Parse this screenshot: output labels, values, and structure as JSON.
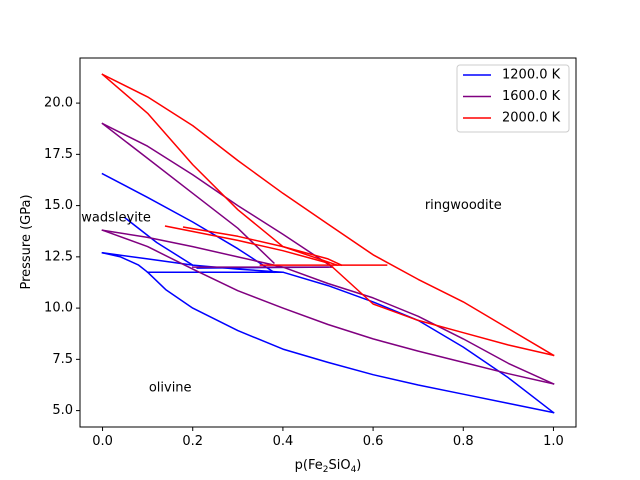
{
  "chart_data": {
    "type": "line",
    "xlabel": "p(Fe2SiO4)",
    "xlabel_parts": {
      "base": "p(Fe",
      "sub1": "2",
      "mid": "SiO",
      "sub2": "4",
      "end": ")"
    },
    "ylabel": "Pressure (GPa)",
    "xlim": [
      -0.05,
      1.05
    ],
    "ylim": [
      4.2,
      22.2
    ],
    "xticks": [
      0.0,
      0.2,
      0.4,
      0.6,
      0.8,
      1.0
    ],
    "xtick_labels": [
      "0.0",
      "0.2",
      "0.4",
      "0.6",
      "0.8",
      "1.0"
    ],
    "yticks": [
      5.0,
      7.5,
      10.0,
      12.5,
      15.0,
      17.5,
      20.0
    ],
    "ytick_labels": [
      "5.0",
      "7.5",
      "10.0",
      "12.5",
      "15.0",
      "17.5",
      "20.0"
    ],
    "grid": false,
    "legend_position": "top-right",
    "region_labels": [
      {
        "text": "olivine",
        "x": 0.15,
        "y": 6.1
      },
      {
        "text": "wadsleyite",
        "x": 0.03,
        "y": 14.4
      },
      {
        "text": "ringwoodite",
        "x": 0.8,
        "y": 15.0
      }
    ],
    "series": [
      {
        "name": "1200.0 K",
        "color": "#0000ff",
        "lines": [
          [
            [
              0.0,
              12.7
            ],
            [
              0.04,
              12.5
            ],
            [
              0.08,
              12.1
            ],
            [
              0.1,
              11.75
            ],
            [
              0.14,
              10.9
            ],
            [
              0.2,
              10.0
            ],
            [
              0.3,
              8.9
            ],
            [
              0.4,
              8.0
            ],
            [
              0.5,
              7.35
            ],
            [
              0.6,
              6.75
            ],
            [
              0.7,
              6.25
            ],
            [
              0.8,
              5.8
            ],
            [
              0.9,
              5.35
            ],
            [
              1.0,
              4.9
            ]
          ],
          [
            [
              0.0,
              12.7
            ],
            [
              0.1,
              12.4
            ],
            [
              0.2,
              12.1
            ],
            [
              0.3,
              11.9
            ],
            [
              0.4,
              11.75
            ],
            [
              0.5,
              11.1
            ],
            [
              0.6,
              10.3
            ],
            [
              0.7,
              9.4
            ],
            [
              0.8,
              8.1
            ],
            [
              0.9,
              6.6
            ],
            [
              1.0,
              4.9
            ]
          ],
          [
            [
              0.0,
              16.55
            ],
            [
              0.1,
              15.4
            ],
            [
              0.2,
              14.2
            ],
            [
              0.3,
              12.9
            ],
            [
              0.38,
              11.75
            ]
          ],
          [
            [
              0.05,
              14.4
            ],
            [
              0.12,
              13.2
            ],
            [
              0.2,
              12.1
            ]
          ],
          [
            [
              0.1,
              11.75
            ],
            [
              0.4,
              11.75
            ]
          ],
          [
            [
              0.21,
              11.95
            ],
            [
              0.5,
              12.0
            ]
          ]
        ]
      },
      {
        "name": "1600.0 K",
        "color": "#800080",
        "lines": [
          [
            [
              0.0,
              13.8
            ],
            [
              0.1,
              13.0
            ],
            [
              0.2,
              11.9
            ],
            [
              0.3,
              10.85
            ],
            [
              0.4,
              10.0
            ],
            [
              0.5,
              9.2
            ],
            [
              0.6,
              8.5
            ],
            [
              0.7,
              7.9
            ],
            [
              0.8,
              7.35
            ],
            [
              0.9,
              6.8
            ],
            [
              1.0,
              6.3
            ]
          ],
          [
            [
              0.0,
              13.8
            ],
            [
              0.1,
              13.45
            ],
            [
              0.2,
              13.0
            ],
            [
              0.3,
              12.5
            ],
            [
              0.4,
              12.0
            ],
            [
              0.5,
              11.2
            ],
            [
              0.6,
              10.5
            ],
            [
              0.7,
              9.6
            ],
            [
              0.8,
              8.5
            ],
            [
              0.9,
              7.3
            ],
            [
              1.0,
              6.3
            ]
          ],
          [
            [
              0.0,
              19.0
            ],
            [
              0.1,
              17.3
            ],
            [
              0.2,
              15.6
            ],
            [
              0.3,
              13.9
            ],
            [
              0.38,
              12.2
            ]
          ],
          [
            [
              0.0,
              19.0
            ],
            [
              0.1,
              17.9
            ],
            [
              0.2,
              16.5
            ],
            [
              0.3,
              15.0
            ],
            [
              0.4,
              13.6
            ],
            [
              0.51,
              12.0
            ]
          ],
          [
            [
              0.2,
              12.0
            ],
            [
              0.51,
              12.0
            ]
          ]
        ]
      },
      {
        "name": "2000.0 K",
        "color": "#ff0000",
        "lines": [
          [
            [
              0.0,
              21.4
            ],
            [
              0.1,
              19.5
            ],
            [
              0.2,
              17.0
            ],
            [
              0.3,
              14.8
            ],
            [
              0.4,
              13.0
            ],
            [
              0.52,
              12.1
            ]
          ],
          [
            [
              0.0,
              21.4
            ],
            [
              0.1,
              20.3
            ],
            [
              0.2,
              18.9
            ],
            [
              0.3,
              17.2
            ],
            [
              0.4,
              15.6
            ],
            [
              0.5,
              14.1
            ],
            [
              0.6,
              12.6
            ],
            [
              0.7,
              11.4
            ],
            [
              0.8,
              10.3
            ],
            [
              0.9,
              9.0
            ],
            [
              1.0,
              7.7
            ]
          ],
          [
            [
              0.35,
              12.1
            ],
            [
              0.63,
              12.1
            ]
          ],
          [
            [
              0.14,
              14.0
            ],
            [
              0.3,
              13.3
            ],
            [
              0.4,
              12.8
            ],
            [
              0.5,
              12.2
            ],
            [
              0.6,
              10.2
            ],
            [
              0.7,
              9.4
            ],
            [
              0.8,
              8.8
            ],
            [
              0.9,
              8.2
            ],
            [
              1.0,
              7.7
            ]
          ],
          [
            [
              0.18,
              13.95
            ],
            [
              0.3,
              13.5
            ],
            [
              0.4,
              13.0
            ],
            [
              0.5,
              12.4
            ],
            [
              0.53,
              12.1
            ]
          ]
        ]
      }
    ]
  }
}
